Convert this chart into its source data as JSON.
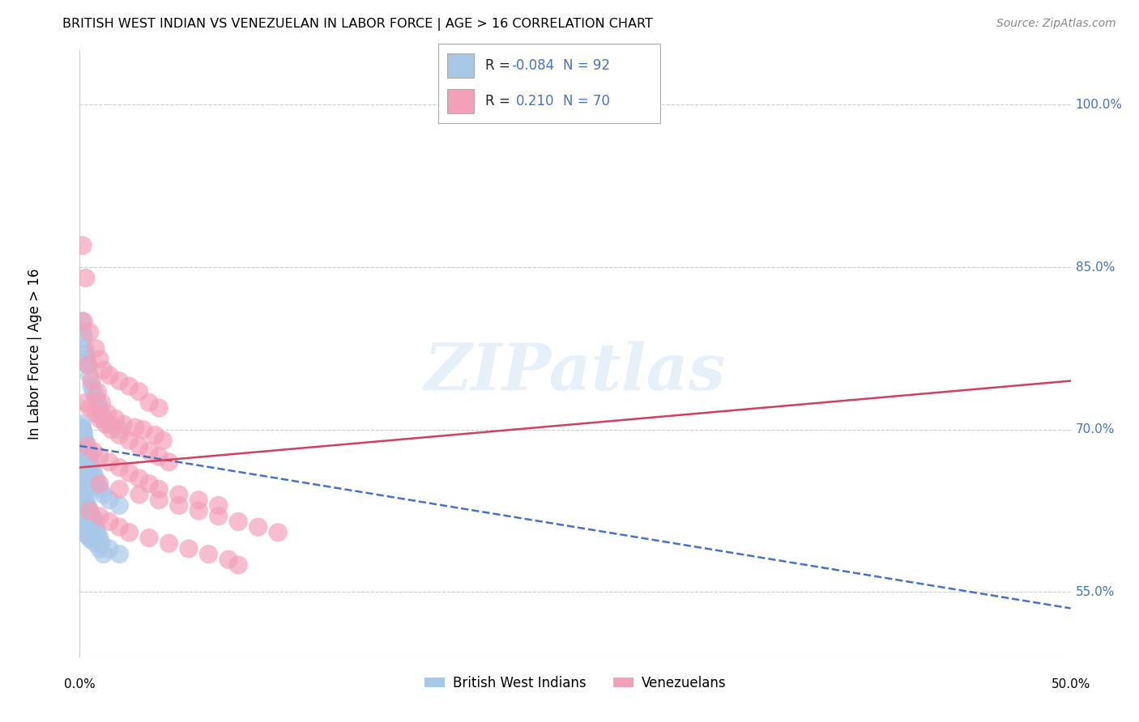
{
  "title": "BRITISH WEST INDIAN VS VENEZUELAN IN LABOR FORCE | AGE > 16 CORRELATION CHART",
  "source": "Source: ZipAtlas.com",
  "ylabel": "In Labor Force | Age > 16",
  "ytick_values": [
    55.0,
    70.0,
    85.0,
    100.0
  ],
  "legend_label1": "British West Indians",
  "legend_label2": "Venezuelans",
  "r1": "-0.084",
  "n1": "92",
  "r2": "0.210",
  "n2": "70",
  "color_bwi": "#a8c8e8",
  "color_ven": "#f4a0b8",
  "color_blue_text": "#4472c4",
  "color_pink_line": "#d04060",
  "xlim": [
    0,
    50
  ],
  "ylim": [
    49,
    105
  ],
  "watermark": "ZIPatlas",
  "bwi_trend_x": [
    0,
    50
  ],
  "bwi_trend_y": [
    68.5,
    53.5
  ],
  "ven_trend_x": [
    0,
    50
  ],
  "ven_trend_y": [
    66.5,
    74.5
  ],
  "bwi_x": [
    0.1,
    0.15,
    0.2,
    0.25,
    0.3,
    0.35,
    0.4,
    0.5,
    0.6,
    0.7,
    0.8,
    0.9,
    1.0,
    1.1,
    1.2,
    1.5,
    2.0,
    0.1,
    0.12,
    0.15,
    0.18,
    0.2,
    0.22,
    0.25,
    0.28,
    0.3,
    0.35,
    0.4,
    0.45,
    0.5,
    0.1,
    0.15,
    0.2,
    0.25,
    0.3,
    0.35,
    0.4,
    0.5,
    0.6,
    0.7,
    0.8,
    0.1,
    0.12,
    0.15,
    0.18,
    0.2,
    0.25,
    0.3,
    0.35,
    0.4,
    0.5,
    0.6,
    0.7,
    0.1,
    0.15,
    0.2,
    0.25,
    0.3,
    0.4,
    0.5,
    0.6,
    0.8,
    1.0,
    1.2,
    0.1,
    0.15,
    0.2,
    0.3,
    0.4,
    0.5,
    0.6,
    0.7,
    0.8,
    0.9,
    1.0,
    1.1,
    1.5,
    2.0,
    0.2,
    0.3,
    0.4,
    0.5,
    0.6,
    0.7,
    0.8,
    0.9,
    1.0,
    1.2,
    1.5,
    2.0
  ],
  "bwi_y": [
    80.0,
    79.0,
    78.5,
    77.5,
    77.0,
    76.5,
    76.0,
    75.0,
    74.0,
    73.5,
    73.0,
    72.5,
    72.0,
    71.5,
    71.0,
    70.5,
    70.0,
    70.5,
    70.2,
    70.0,
    69.8,
    69.5,
    69.2,
    69.0,
    68.8,
    68.5,
    68.2,
    68.0,
    67.8,
    67.5,
    67.2,
    67.0,
    66.8,
    66.5,
    66.2,
    66.0,
    65.8,
    65.5,
    65.2,
    65.0,
    64.8,
    64.5,
    64.2,
    64.0,
    63.8,
    63.5,
    63.2,
    63.0,
    62.8,
    62.5,
    62.2,
    62.0,
    61.8,
    61.5,
    61.2,
    61.0,
    60.8,
    60.5,
    60.2,
    60.0,
    59.8,
    59.5,
    59.0,
    58.5,
    65.0,
    64.5,
    64.0,
    63.5,
    63.0,
    62.5,
    62.0,
    61.5,
    61.0,
    60.5,
    60.0,
    59.5,
    59.0,
    58.5,
    68.5,
    68.0,
    67.5,
    67.0,
    66.5,
    66.0,
    65.5,
    65.0,
    64.5,
    64.0,
    63.5,
    63.0
  ],
  "ven_x": [
    0.15,
    0.3,
    0.5,
    0.8,
    1.0,
    1.2,
    1.5,
    2.0,
    2.5,
    3.0,
    3.5,
    4.0,
    0.2,
    0.4,
    0.6,
    0.9,
    1.1,
    1.4,
    1.8,
    2.2,
    2.8,
    3.2,
    3.8,
    4.2,
    0.3,
    0.5,
    0.8,
    1.0,
    1.3,
    1.6,
    2.0,
    2.5,
    3.0,
    3.5,
    4.0,
    4.5,
    0.4,
    0.7,
    1.0,
    1.5,
    2.0,
    2.5,
    3.0,
    3.5,
    4.0,
    5.0,
    6.0,
    7.0,
    0.5,
    1.0,
    1.5,
    2.0,
    2.5,
    3.5,
    4.5,
    5.5,
    6.5,
    7.5,
    8.0,
    1.0,
    2.0,
    3.0,
    4.0,
    5.0,
    6.0,
    7.0,
    8.0,
    9.0,
    10.0
  ],
  "ven_y": [
    87.0,
    84.0,
    79.0,
    77.5,
    76.5,
    75.5,
    75.0,
    74.5,
    74.0,
    73.5,
    72.5,
    72.0,
    80.0,
    76.0,
    74.5,
    73.5,
    72.5,
    71.5,
    71.0,
    70.5,
    70.2,
    70.0,
    69.5,
    69.0,
    72.5,
    72.0,
    71.5,
    71.0,
    70.5,
    70.0,
    69.5,
    69.0,
    68.5,
    68.0,
    67.5,
    67.0,
    68.5,
    68.0,
    67.5,
    67.0,
    66.5,
    66.0,
    65.5,
    65.0,
    64.5,
    64.0,
    63.5,
    63.0,
    62.5,
    62.0,
    61.5,
    61.0,
    60.5,
    60.0,
    59.5,
    59.0,
    58.5,
    58.0,
    57.5,
    65.0,
    64.5,
    64.0,
    63.5,
    63.0,
    62.5,
    62.0,
    61.5,
    61.0,
    60.5
  ]
}
